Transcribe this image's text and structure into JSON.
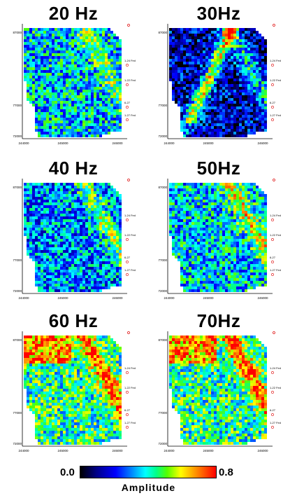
{
  "panels": [
    {
      "title": "20 Hz",
      "mean": 0.45,
      "hot": 0.35
    },
    {
      "title": "30Hz",
      "mean": 0.18,
      "hot": 0.6
    },
    {
      "title": "40 Hz",
      "mean": 0.38,
      "hot": 0.55
    },
    {
      "title": "50Hz",
      "mean": 0.45,
      "hot": 0.6
    },
    {
      "title": "60 Hz",
      "mean": 0.55,
      "hot": 0.75
    },
    {
      "title": "70Hz",
      "mean": 0.55,
      "hot": 0.75
    }
  ],
  "axes": {
    "y_ticks": [
      "87000",
      "77000",
      "72000"
    ],
    "x_ticks": [
      "244000",
      "245000",
      "246000"
    ],
    "well_labels": [
      "1-24 Fed",
      "1-22 Fed",
      "6-27",
      "1-27 Fed"
    ]
  },
  "colorbar": {
    "min_label": "0.0",
    "max_label": "0.8",
    "title": "Amplitude"
  }
}
